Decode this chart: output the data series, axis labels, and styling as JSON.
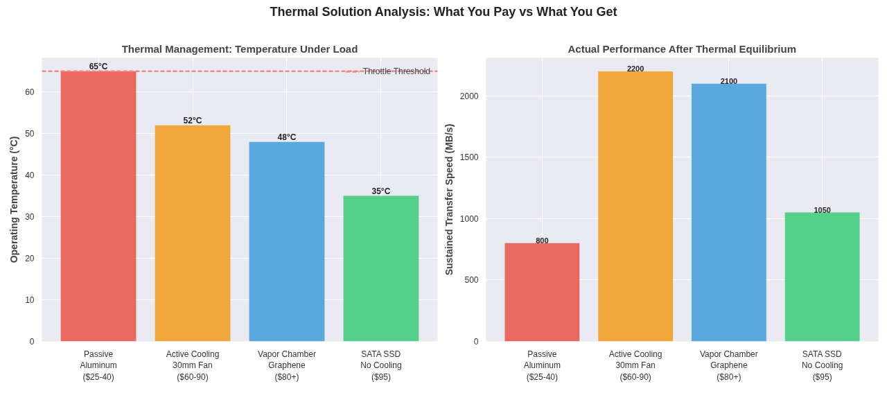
{
  "chart_data": [
    {
      "type": "bar",
      "title": "Thermal Management: Temperature Under Load",
      "ylabel": "Operating Temperature (°C)",
      "annotations": [
        "Thermal Solution Analysis: What You Pay vs What You Get"
      ],
      "categories": [
        "Passive\nAluminum\n($25-40)",
        "Active Cooling\n30mm Fan\n($60-90)",
        "Vapor Chamber\nGraphene\n($80+)",
        "SATA SSD\nNo Cooling\n($95)"
      ],
      "values": [
        65,
        52,
        48,
        35
      ],
      "colors": [
        "#e8695e",
        "#f0a73a",
        "#5aa8de",
        "#54d08a"
      ],
      "value_labels": [
        "65°C",
        "52°C",
        "48°C",
        "35°C"
      ],
      "ylim": [
        0,
        68.2
      ],
      "yticks": [
        0,
        10,
        20,
        30,
        40,
        50,
        60
      ],
      "grid": true,
      "legend": "top right",
      "ref_lines": [
        {
          "axis": "y",
          "value": 65,
          "label": "Throttle Threshold",
          "color": "#f08080",
          "line_style": "dashed"
        }
      ]
    },
    {
      "type": "bar",
      "title": "Actual Performance After Thermal Equilibrium",
      "ylabel": "Sustained Transfer Speed (MB/s)",
      "categories": [
        "Passive\nAluminum\n($25-40)",
        "Active Cooling\n30mm Fan\n($60-90)",
        "Vapor Chamber\nGraphene\n($80+)",
        "SATA SSD\nNo Cooling\n($95)"
      ],
      "values": [
        800,
        2200,
        2100,
        1050
      ],
      "colors": [
        "#e8695e",
        "#f0a73a",
        "#5aa8de",
        "#54d08a"
      ],
      "data_labels": true,
      "ylim": [
        0,
        2310
      ],
      "yticks": [
        0,
        500,
        1000,
        1500,
        2000
      ],
      "grid": true
    }
  ]
}
